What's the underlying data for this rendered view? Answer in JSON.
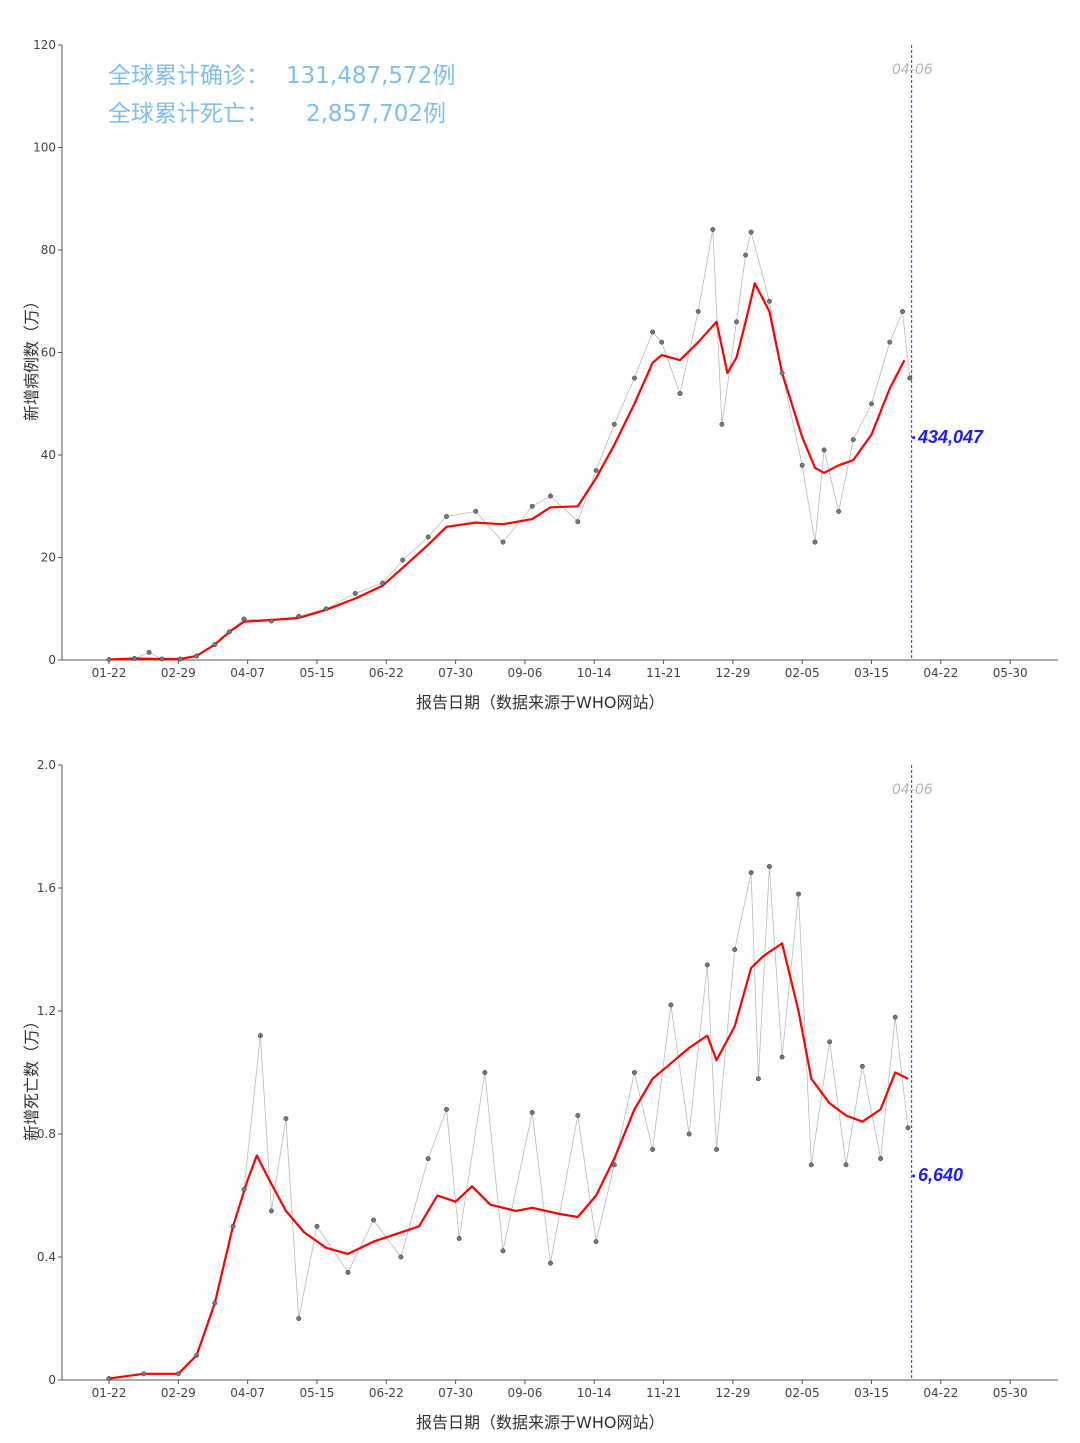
{
  "xaxis_ticks": [
    "01-22",
    "02-29",
    "04-07",
    "05-15",
    "06-22",
    "07-30",
    "09-06",
    "10-14",
    "11-21",
    "12-29",
    "02-05",
    "03-15",
    "04-22",
    "05-30"
  ],
  "summary": {
    "cases_label": "全球累计确诊：",
    "cases_value": "131,487,572例",
    "deaths_label": "全球累计死亡：",
    "deaths_value": "2,857,702例"
  },
  "colors": {
    "summary_text": "#7fbfee",
    "moving_average": "#ff0000",
    "daily_points": "#555555",
    "daily_line": "#bbbbbb",
    "reference_line": "#3333cc",
    "annotation_value": "#1a1aff",
    "annotation_date": "#b3b3b3"
  },
  "chart_data": [
    {
      "type": "line",
      "title": "",
      "xlabel": "报告日期（数据来源于WHO网站）",
      "ylabel": "新增病例数（万）",
      "ylim": [
        0,
        120
      ],
      "yticks": [
        "0",
        "20",
        "40",
        "60",
        "80",
        "100",
        "120"
      ],
      "grid": false,
      "reference_date": "04-06",
      "latest_value_label": "434,047",
      "latest_value": 43.4,
      "moving_average": {
        "color": "#ff0000",
        "points": [
          [
            "2020-01-22",
            0.1
          ],
          [
            "2020-02-05",
            0.3
          ],
          [
            "2020-02-19",
            0.2
          ],
          [
            "2020-03-01",
            0.2
          ],
          [
            "2020-03-10",
            0.8
          ],
          [
            "2020-03-20",
            3.0
          ],
          [
            "2020-03-28",
            5.5
          ],
          [
            "2020-04-05",
            7.5
          ],
          [
            "2020-04-20",
            7.8
          ],
          [
            "2020-05-05",
            8.2
          ],
          [
            "2020-05-20",
            9.8
          ],
          [
            "2020-06-05",
            12.0
          ],
          [
            "2020-06-20",
            14.5
          ],
          [
            "2020-07-01",
            18.0
          ],
          [
            "2020-07-15",
            22.5
          ],
          [
            "2020-07-25",
            26.0
          ],
          [
            "2020-08-10",
            26.8
          ],
          [
            "2020-08-25",
            26.5
          ],
          [
            "2020-09-10",
            27.5
          ],
          [
            "2020-09-20",
            29.8
          ],
          [
            "2020-10-05",
            30.0
          ],
          [
            "2020-10-15",
            35.5
          ],
          [
            "2020-10-25",
            42.0
          ],
          [
            "2020-11-05",
            50.0
          ],
          [
            "2020-11-15",
            58.0
          ],
          [
            "2020-11-20",
            59.5
          ],
          [
            "2020-11-30",
            58.5
          ],
          [
            "2020-12-10",
            62.0
          ],
          [
            "2020-12-20",
            66.0
          ],
          [
            "2020-12-26",
            56.0
          ],
          [
            "2020-12-31",
            59.0
          ],
          [
            "2021-01-05",
            66.0
          ],
          [
            "2021-01-10",
            73.5
          ],
          [
            "2021-01-18",
            68.0
          ],
          [
            "2021-01-25",
            56.0
          ],
          [
            "2021-02-05",
            43.5
          ],
          [
            "2021-02-12",
            37.5
          ],
          [
            "2021-02-17",
            36.5
          ],
          [
            "2021-02-25",
            38.0
          ],
          [
            "2021-03-05",
            39.0
          ],
          [
            "2021-03-15",
            44.0
          ],
          [
            "2021-03-25",
            53.0
          ],
          [
            "2021-04-02",
            58.5
          ]
        ]
      },
      "daily_points": {
        "color": "#555555",
        "points": [
          [
            "2020-01-22",
            0.1
          ],
          [
            "2020-02-05",
            0.3
          ],
          [
            "2020-02-13",
            1.5
          ],
          [
            "2020-02-20",
            0.2
          ],
          [
            "2020-03-01",
            0.2
          ],
          [
            "2020-03-10",
            0.8
          ],
          [
            "2020-03-20",
            3.0
          ],
          [
            "2020-03-28",
            5.5
          ],
          [
            "2020-04-05",
            8.0
          ],
          [
            "2020-04-20",
            7.6
          ],
          [
            "2020-05-05",
            8.5
          ],
          [
            "2020-05-20",
            10.0
          ],
          [
            "2020-06-05",
            13.0
          ],
          [
            "2020-06-20",
            15.0
          ],
          [
            "2020-07-01",
            19.5
          ],
          [
            "2020-07-15",
            24.0
          ],
          [
            "2020-07-25",
            28.0
          ],
          [
            "2020-08-10",
            29.0
          ],
          [
            "2020-08-25",
            23.0
          ],
          [
            "2020-09-10",
            30.0
          ],
          [
            "2020-09-20",
            32.0
          ],
          [
            "2020-10-05",
            27.0
          ],
          [
            "2020-10-15",
            37.0
          ],
          [
            "2020-10-25",
            46.0
          ],
          [
            "2020-11-05",
            55.0
          ],
          [
            "2020-11-15",
            64.0
          ],
          [
            "2020-11-20",
            62.0
          ],
          [
            "2020-11-30",
            52.0
          ],
          [
            "2020-12-10",
            68.0
          ],
          [
            "2020-12-18",
            84.0
          ],
          [
            "2020-12-23",
            46.0
          ],
          [
            "2020-12-31",
            66.0
          ],
          [
            "2021-01-05",
            79.0
          ],
          [
            "2021-01-08",
            83.5
          ],
          [
            "2021-01-18",
            70.0
          ],
          [
            "2021-01-25",
            56.0
          ],
          [
            "2021-02-05",
            38.0
          ],
          [
            "2021-02-12",
            23.0
          ],
          [
            "2021-02-17",
            41.0
          ],
          [
            "2021-02-25",
            29.0
          ],
          [
            "2021-03-05",
            43.0
          ],
          [
            "2021-03-15",
            50.0
          ],
          [
            "2021-03-25",
            62.0
          ],
          [
            "2021-04-01",
            68.0
          ],
          [
            "2021-04-05",
            55.0
          ]
        ]
      }
    },
    {
      "type": "line",
      "title": "",
      "xlabel": "报告日期（数据来源于WHO网站）",
      "ylabel": "新增死亡数（万）",
      "ylim": [
        0,
        2.0
      ],
      "yticks": [
        "0",
        "0.4",
        "0.8",
        "1.2",
        "1.6",
        "2.0"
      ],
      "grid": false,
      "reference_date": "04-06",
      "latest_value_label": "6,640",
      "latest_value": 0.664,
      "moving_average": {
        "color": "#ff0000",
        "points": [
          [
            "2020-01-22",
            0.005
          ],
          [
            "2020-02-10",
            0.02
          ],
          [
            "2020-02-29",
            0.02
          ],
          [
            "2020-03-10",
            0.08
          ],
          [
            "2020-03-20",
            0.25
          ],
          [
            "2020-03-30",
            0.5
          ],
          [
            "2020-04-07",
            0.65
          ],
          [
            "2020-04-12",
            0.73
          ],
          [
            "2020-04-18",
            0.66
          ],
          [
            "2020-04-28",
            0.55
          ],
          [
            "2020-05-08",
            0.48
          ],
          [
            "2020-05-20",
            0.43
          ],
          [
            "2020-06-01",
            0.41
          ],
          [
            "2020-06-15",
            0.45
          ],
          [
            "2020-06-30",
            0.48
          ],
          [
            "2020-07-10",
            0.5
          ],
          [
            "2020-07-20",
            0.6
          ],
          [
            "2020-07-30",
            0.58
          ],
          [
            "2020-08-08",
            0.63
          ],
          [
            "2020-08-18",
            0.57
          ],
          [
            "2020-09-01",
            0.55
          ],
          [
            "2020-09-10",
            0.56
          ],
          [
            "2020-09-25",
            0.54
          ],
          [
            "2020-10-05",
            0.53
          ],
          [
            "2020-10-15",
            0.6
          ],
          [
            "2020-10-25",
            0.72
          ],
          [
            "2020-11-05",
            0.88
          ],
          [
            "2020-11-15",
            0.98
          ],
          [
            "2020-11-25",
            1.03
          ],
          [
            "2020-12-05",
            1.08
          ],
          [
            "2020-12-15",
            1.12
          ],
          [
            "2020-12-20",
            1.04
          ],
          [
            "2020-12-30",
            1.15
          ],
          [
            "2021-01-08",
            1.34
          ],
          [
            "2021-01-15",
            1.38
          ],
          [
            "2021-01-25",
            1.42
          ],
          [
            "2021-02-03",
            1.2
          ],
          [
            "2021-02-10",
            0.98
          ],
          [
            "2021-02-20",
            0.9
          ],
          [
            "2021-03-01",
            0.86
          ],
          [
            "2021-03-10",
            0.84
          ],
          [
            "2021-03-20",
            0.88
          ],
          [
            "2021-03-28",
            1.0
          ],
          [
            "2021-04-04",
            0.98
          ]
        ]
      },
      "daily_points": {
        "color": "#555555",
        "points": [
          [
            "2020-01-22",
            0.005
          ],
          [
            "2020-02-10",
            0.02
          ],
          [
            "2020-02-29",
            0.02
          ],
          [
            "2020-03-10",
            0.08
          ],
          [
            "2020-03-20",
            0.25
          ],
          [
            "2020-03-30",
            0.5
          ],
          [
            "2020-04-05",
            0.62
          ],
          [
            "2020-04-14",
            1.12
          ],
          [
            "2020-04-20",
            0.55
          ],
          [
            "2020-04-28",
            0.85
          ],
          [
            "2020-05-05",
            0.2
          ],
          [
            "2020-05-15",
            0.5
          ],
          [
            "2020-06-01",
            0.35
          ],
          [
            "2020-06-15",
            0.52
          ],
          [
            "2020-06-30",
            0.4
          ],
          [
            "2020-07-15",
            0.72
          ],
          [
            "2020-07-25",
            0.88
          ],
          [
            "2020-08-01",
            0.46
          ],
          [
            "2020-08-15",
            1.0
          ],
          [
            "2020-08-25",
            0.42
          ],
          [
            "2020-09-10",
            0.87
          ],
          [
            "2020-09-20",
            0.38
          ],
          [
            "2020-10-05",
            0.86
          ],
          [
            "2020-10-15",
            0.45
          ],
          [
            "2020-10-25",
            0.7
          ],
          [
            "2020-11-05",
            1.0
          ],
          [
            "2020-11-15",
            0.75
          ],
          [
            "2020-11-25",
            1.22
          ],
          [
            "2020-12-05",
            0.8
          ],
          [
            "2020-12-15",
            1.35
          ],
          [
            "2020-12-20",
            0.75
          ],
          [
            "2020-12-30",
            1.4
          ],
          [
            "2021-01-08",
            1.65
          ],
          [
            "2021-01-12",
            0.98
          ],
          [
            "2021-01-18",
            1.67
          ],
          [
            "2021-01-25",
            1.05
          ],
          [
            "2021-02-03",
            1.58
          ],
          [
            "2021-02-10",
            0.7
          ],
          [
            "2021-02-20",
            1.1
          ],
          [
            "2021-03-01",
            0.7
          ],
          [
            "2021-03-10",
            1.02
          ],
          [
            "2021-03-20",
            0.72
          ],
          [
            "2021-03-28",
            1.18
          ],
          [
            "2021-04-04",
            0.82
          ]
        ]
      }
    }
  ]
}
